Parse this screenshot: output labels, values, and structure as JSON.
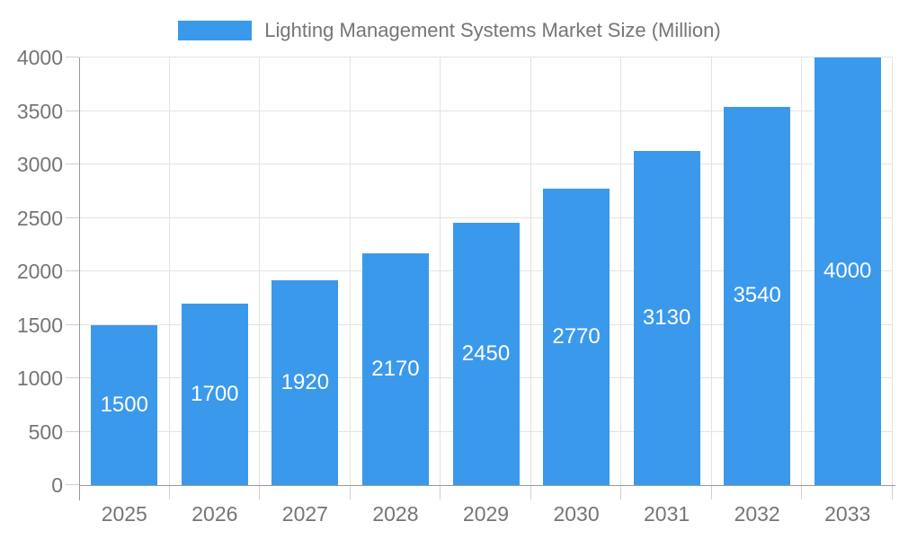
{
  "legend": {
    "label": "Lighting Management Systems Market Size (Million)"
  },
  "chart_data": {
    "type": "bar",
    "title": "Lighting Management Systems Market Size (Million)",
    "categories": [
      "2025",
      "2026",
      "2027",
      "2028",
      "2029",
      "2030",
      "2031",
      "2032",
      "2033"
    ],
    "values": [
      1500,
      1700,
      1920,
      2170,
      2450,
      2770,
      3130,
      3540,
      4000
    ],
    "value_labels": [
      "1500",
      "1700",
      "1920",
      "2170",
      "2450",
      "2770",
      "3130",
      "3540",
      "4000"
    ],
    "xlabel": "",
    "ylabel": "",
    "ylim": [
      0,
      4000
    ],
    "yticks": [
      0,
      500,
      1000,
      1500,
      2000,
      2500,
      3000,
      3500,
      4000
    ],
    "grid": true,
    "legend_position": "top",
    "value_label_position": "center"
  },
  "colors": {
    "bar": "#3B99EC",
    "grid": "#e3e3e3",
    "axis": "#9a9a9a",
    "tick": "#cfcfcf",
    "text": "#757575",
    "value_label": "#ffffff",
    "background": "#ffffff"
  }
}
